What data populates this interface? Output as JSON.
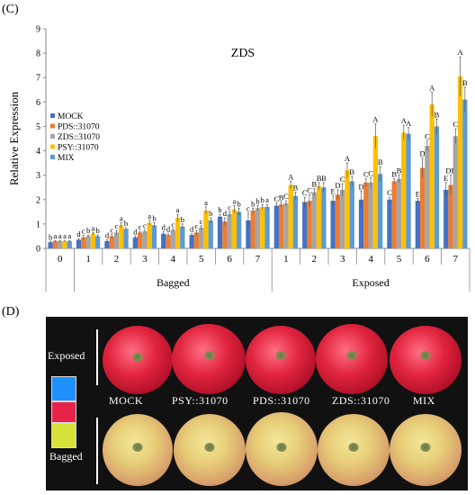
{
  "panel_c_label": "(C)",
  "panel_d_label": "(D)",
  "chart_data": {
    "type": "bar",
    "title": "ZDS",
    "ylabel": "Relative Expression",
    "xlabel": "",
    "ylim": [
      0,
      9
    ],
    "yticks": [
      0,
      1,
      2,
      3,
      4,
      5,
      6,
      7,
      8,
      9
    ],
    "legend_position": "left",
    "categories": [
      "0",
      "1",
      "2",
      "3",
      "4",
      "5",
      "6",
      "7",
      "1",
      "2",
      "3",
      "4",
      "5",
      "6",
      "7"
    ],
    "groups": [
      {
        "label": "Bagged",
        "from": 1,
        "to": 7
      },
      {
        "label": "Exposed",
        "from": 8,
        "to": 14
      }
    ],
    "series": [
      {
        "name": "MOCK",
        "color": "#4472c4",
        "values": [
          0.25,
          0.35,
          0.3,
          0.45,
          0.6,
          0.55,
          1.3,
          1.15,
          1.75,
          1.9,
          1.95,
          2.0,
          2.0,
          1.95,
          2.4
        ],
        "errors": [
          0.03,
          0.05,
          0.05,
          0.05,
          0.08,
          0.05,
          0.1,
          0.3,
          0.1,
          0.2,
          0.2,
          0.35,
          0.1,
          0.1,
          0.3
        ],
        "labels": [
          "b",
          "d",
          "d",
          "d",
          "d",
          "d",
          "b",
          "c",
          "C",
          "C",
          "E",
          "D",
          "C",
          "E",
          "E"
        ]
      },
      {
        "name": "PDS::31070",
        "color": "#ed7d31",
        "values": [
          0.3,
          0.45,
          0.5,
          0.65,
          0.55,
          0.65,
          1.1,
          1.55,
          1.8,
          1.95,
          2.2,
          2.7,
          2.75,
          3.3,
          2.6
        ],
        "errors": [
          0.03,
          0.08,
          0.08,
          0.05,
          0.05,
          0.08,
          0.15,
          0.1,
          0.1,
          0.25,
          0.2,
          0.15,
          0.1,
          0.4,
          0.4
        ],
        "labels": [
          "a",
          "c",
          "c",
          "c",
          "d",
          "c",
          "d",
          "b",
          "B",
          "C",
          "D",
          "C",
          "B",
          "D",
          "DE"
        ]
      },
      {
        "name": "ZDS::31070",
        "color": "#a5a5a5",
        "values": [
          0.3,
          0.5,
          0.65,
          0.7,
          0.75,
          0.85,
          1.4,
          1.65,
          1.85,
          2.3,
          2.4,
          2.7,
          2.85,
          4.2,
          4.6
        ],
        "errors": [
          0.03,
          0.05,
          0.08,
          0.05,
          0.05,
          0.08,
          0.1,
          0.1,
          0.1,
          0.15,
          0.25,
          0.2,
          0.15,
          0.2,
          0.3
        ],
        "labels": [
          "a",
          "b",
          "c",
          "c",
          "c",
          "c",
          "c",
          "b",
          "C",
          "B",
          "C",
          "C",
          "B",
          "C",
          "C"
        ]
      },
      {
        "name": "PSY::31070",
        "color": "#ffc000",
        "values": [
          0.3,
          0.6,
          0.95,
          1.05,
          1.25,
          1.55,
          1.6,
          1.7,
          2.6,
          2.55,
          3.2,
          4.6,
          4.75,
          5.9,
          7.05
        ],
        "errors": [
          0.03,
          0.05,
          0.1,
          0.1,
          0.15,
          0.15,
          0.15,
          0.1,
          0.15,
          0.15,
          0.3,
          0.5,
          0.3,
          0.5,
          0.8
        ],
        "labels": [
          "a",
          "a",
          "a",
          "a",
          "a",
          "a",
          "a",
          "b",
          "A",
          "B",
          "A",
          "A",
          "A",
          "A",
          "A"
        ]
      },
      {
        "name": "MIX",
        "color": "#5b9bd5",
        "values": [
          0.3,
          0.5,
          0.8,
          0.95,
          0.9,
          1.15,
          1.5,
          1.7,
          2.15,
          2.5,
          2.75,
          3.05,
          4.7,
          5.0,
          6.1
        ],
        "errors": [
          0.03,
          0.05,
          0.05,
          0.1,
          0.1,
          0.1,
          0.15,
          0.1,
          0.15,
          0.2,
          0.2,
          0.3,
          0.25,
          0.3,
          0.5
        ],
        "labels": [
          "a",
          "b",
          "b",
          "b",
          "b",
          "b",
          "b",
          "a",
          "B",
          "B",
          "B",
          "B",
          "A",
          "B",
          "B"
        ]
      }
    ]
  },
  "photo": {
    "exposed_label": "Exposed",
    "bagged_label": "Bagged",
    "apple_labels": [
      "MOCK",
      "PSY::31070",
      "PDS::31070",
      "ZDS::31070",
      "MIX"
    ],
    "swatch_colors": [
      "#1e90ff",
      "#e8234a",
      "#d6e23a"
    ]
  }
}
